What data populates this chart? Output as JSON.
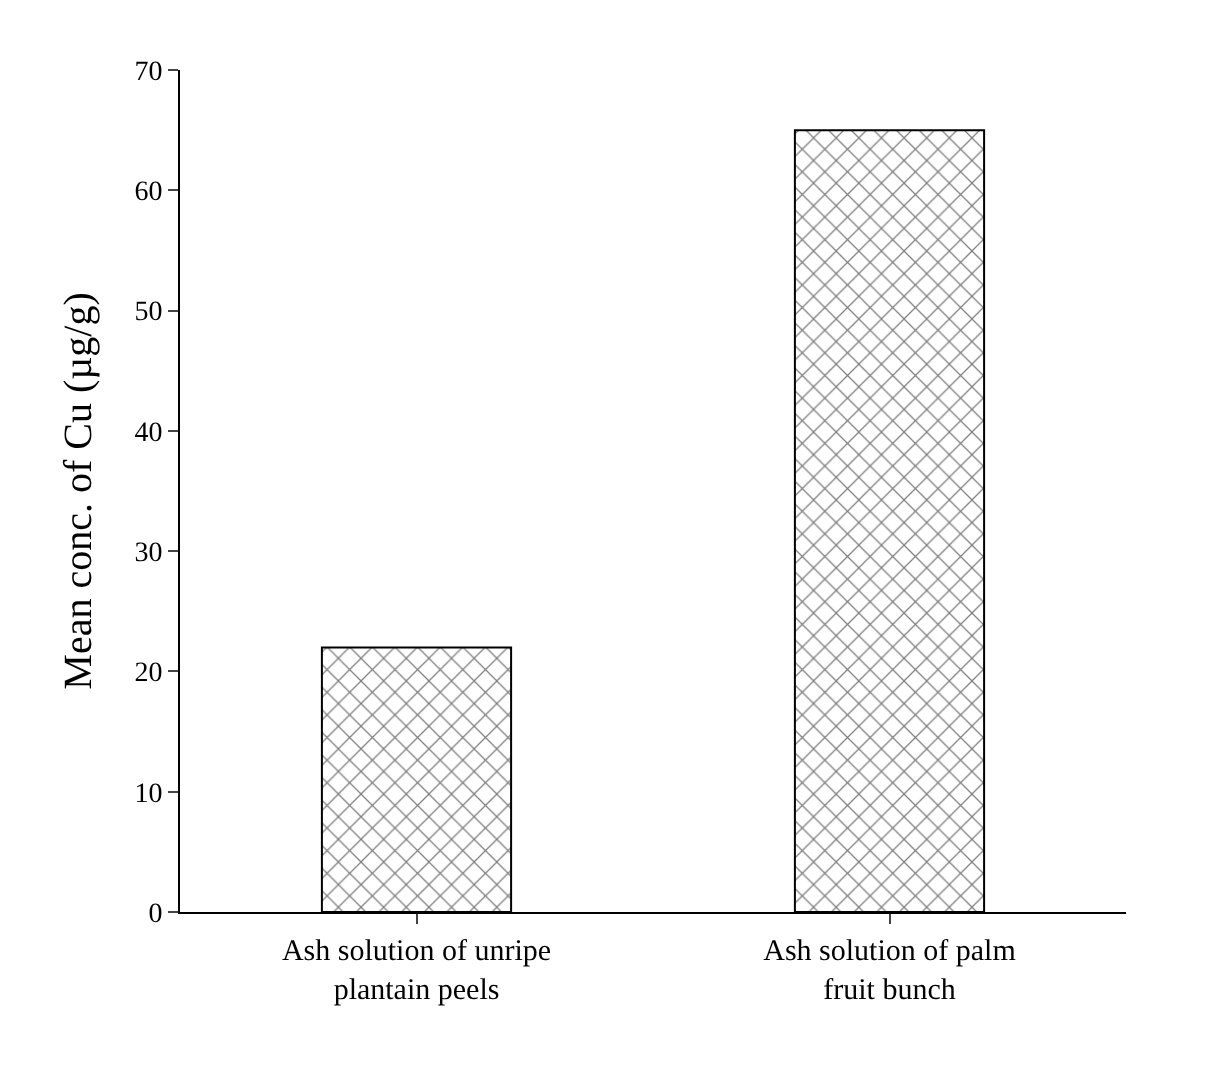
{
  "chart_data": {
    "type": "bar",
    "ylabel": "Mean conc. of Cu (µg/g)",
    "categories": [
      "Ash solution of unripe plantain peels",
      "Ash solution of palm fruit bunch"
    ],
    "values": [
      22,
      65
    ],
    "color": "#000000",
    "ylim": [
      0,
      70
    ],
    "yticks": [
      0,
      10,
      20,
      30,
      40,
      50,
      60,
      70
    ]
  }
}
